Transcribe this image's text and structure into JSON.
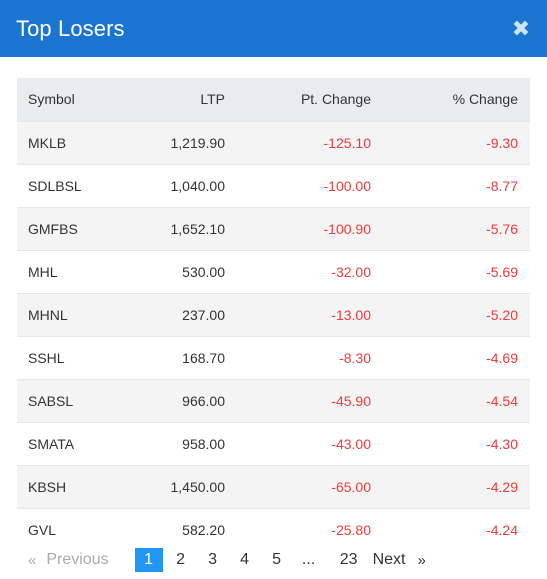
{
  "modal": {
    "title": "Top Losers",
    "close_symbol": "✖"
  },
  "table": {
    "headers": [
      "Symbol",
      "LTP",
      "Pt. Change",
      "% Change"
    ],
    "rows": [
      [
        "MKLB",
        "1,219.90",
        "-125.10",
        "-9.30"
      ],
      [
        "SDLBSL",
        "1,040.00",
        "-100.00",
        "-8.77"
      ],
      [
        "GMFBS",
        "1,652.10",
        "-100.90",
        "-5.76"
      ],
      [
        "MHL",
        "530.00",
        "-32.00",
        "-5.69"
      ],
      [
        "MHNL",
        "237.00",
        "-13.00",
        "-5.20"
      ],
      [
        "SSHL",
        "168.70",
        "-8.30",
        "-4.69"
      ],
      [
        "SABSL",
        "966.00",
        "-45.90",
        "-4.54"
      ],
      [
        "SMATA",
        "958.00",
        "-43.00",
        "-4.30"
      ],
      [
        "KBSH",
        "1,450.00",
        "-65.00",
        "-4.29"
      ],
      [
        "GVL",
        "582.20",
        "-25.80",
        "-4.24"
      ]
    ]
  },
  "pagination": {
    "prev_arrow": "«",
    "prev_label": "Previous",
    "pages": [
      "1",
      "2",
      "3",
      "4",
      "5"
    ],
    "active_page": "1",
    "ellipsis": "...",
    "last_page": "23",
    "next_label": "Next",
    "next_arrow": "»"
  },
  "colors": {
    "header_bg": "#1b74cf",
    "negative": "#ef3b3b",
    "active_page_bg": "#2196f3"
  }
}
